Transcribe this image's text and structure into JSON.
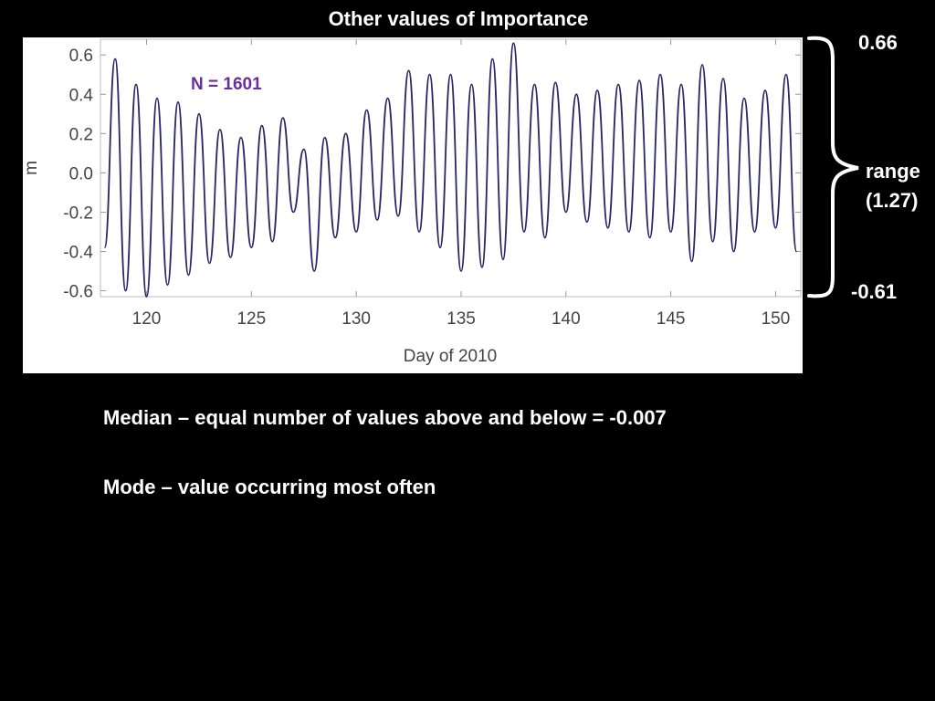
{
  "slide": {
    "title": "Other values of Importance",
    "annotations": {
      "max": "0.66",
      "range_label": "range",
      "range_value": "(1.27)",
      "min": "-0.61"
    },
    "bullets": {
      "median": "Median – equal number of values above and below = -0.007",
      "mode": "Mode – value occurring most often"
    }
  },
  "chart_data": {
    "type": "line",
    "xlabel": "Day of 2010",
    "ylabel": "m",
    "xlim": [
      117.8,
      151.2
    ],
    "ylim": [
      -0.63,
      0.68
    ],
    "x_ticks": [
      120,
      125,
      130,
      135,
      140,
      145,
      150
    ],
    "y_ticks": [
      -0.6,
      -0.4,
      -0.2,
      0.0,
      0.2,
      0.4,
      0.6
    ],
    "x_tick_labels": [
      "120",
      "125",
      "130",
      "135",
      "140",
      "145",
      "150"
    ],
    "y_tick_labels": [
      "-0.6",
      "-0.4",
      "-0.2",
      "0.0",
      "0.2",
      "0.4",
      "0.6"
    ],
    "annotation": "N = 1601",
    "annotation_color": "#6a2d9e",
    "line_color": "#2b2566",
    "grid": false,
    "series": [
      {
        "x": [
          118.0,
          118.5,
          119.0,
          119.5,
          120.0,
          120.5,
          121.0,
          121.5,
          122.0,
          122.5,
          123.0,
          123.5,
          124.0,
          124.5,
          125.0,
          125.5,
          126.0,
          126.5,
          127.0,
          127.5,
          128.0,
          128.5,
          129.0,
          129.5,
          130.0,
          130.5,
          131.0,
          131.5,
          132.0,
          132.5,
          133.0,
          133.5,
          134.0,
          134.5,
          135.0,
          135.5,
          136.0,
          136.5,
          137.0,
          137.5,
          138.0,
          138.5,
          139.0,
          139.5,
          140.0,
          140.5,
          141.0,
          141.5,
          142.0,
          142.5,
          143.0,
          143.5,
          144.0,
          144.5,
          145.0,
          145.5,
          146.0,
          146.5,
          147.0,
          147.5,
          148.0,
          148.5,
          149.0,
          149.5,
          150.0,
          150.5,
          151.0
        ],
        "y": [
          -0.38,
          0.58,
          -0.6,
          0.45,
          -0.63,
          0.38,
          -0.57,
          0.36,
          -0.52,
          0.3,
          -0.46,
          0.22,
          -0.43,
          0.18,
          -0.38,
          0.24,
          -0.35,
          0.28,
          -0.2,
          0.12,
          -0.5,
          0.18,
          -0.33,
          0.2,
          -0.3,
          0.32,
          -0.24,
          0.38,
          -0.22,
          0.52,
          -0.3,
          0.5,
          -0.38,
          0.5,
          -0.5,
          0.45,
          -0.48,
          0.58,
          -0.44,
          0.66,
          -0.3,
          0.45,
          -0.33,
          0.46,
          -0.2,
          0.4,
          -0.25,
          0.42,
          -0.28,
          0.45,
          -0.3,
          0.47,
          -0.33,
          0.5,
          -0.3,
          0.45,
          -0.45,
          0.55,
          -0.35,
          0.48,
          -0.4,
          0.38,
          -0.3,
          0.42,
          -0.28,
          0.5,
          -0.4
        ]
      }
    ]
  }
}
